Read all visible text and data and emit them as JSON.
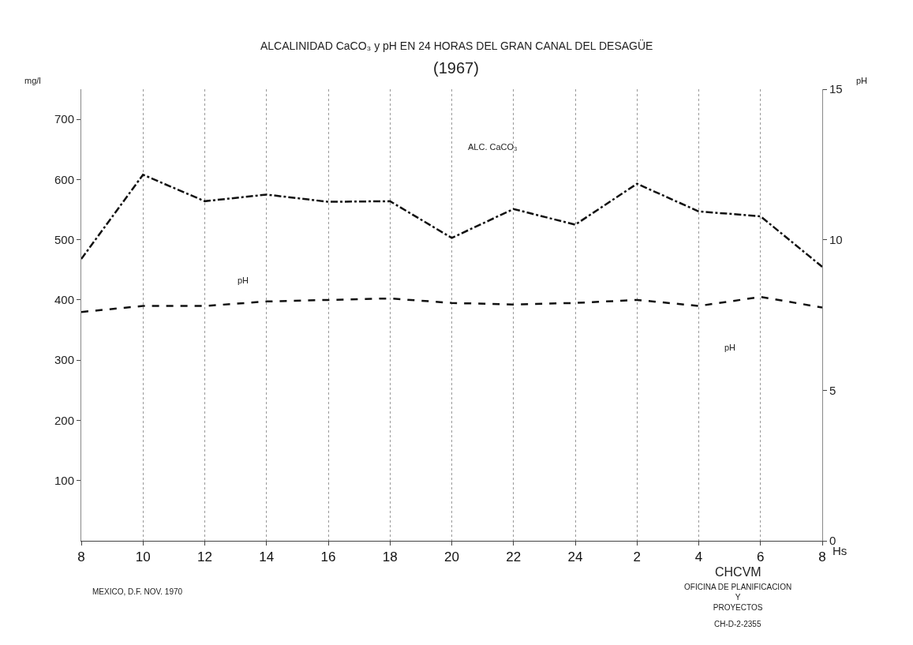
{
  "chart_data": {
    "type": "line",
    "title": "ALCALINIDAD CaCO₃ y pH EN 24 HORAS DEL GRAN CANAL DEL DESAGÜE",
    "subtitle": "(1967)",
    "ylabel": "mg/l",
    "y2label": "pH",
    "xlabel": "Hs",
    "categories": [
      "8",
      "10",
      "12",
      "14",
      "16",
      "18",
      "20",
      "22",
      "24",
      "2",
      "4",
      "6",
      "8"
    ],
    "series": [
      {
        "color": "#111111",
        "line_style": "dashdot",
        "values": [
          468,
          608,
          564,
          575,
          563,
          564,
          503,
          551,
          525,
          593,
          547,
          539,
          455
        ]
      },
      {
        "color": "#111111",
        "line_style": "dashed",
        "axis": "y2",
        "values": [
          7.6,
          7.8,
          7.8,
          7.95,
          8.0,
          8.05,
          7.9,
          7.85,
          7.9,
          8.0,
          7.8,
          8.1,
          7.75
        ]
      }
    ],
    "ylim": [
      0,
      750
    ],
    "yticks": [
      100,
      200,
      300,
      400,
      500,
      600,
      700
    ],
    "y2lim": [
      0,
      15
    ],
    "y2ticks": [
      0,
      5,
      10,
      15
    ],
    "grid": "x",
    "annotations": [
      "ALC. CaCO₃",
      "pH",
      "pH",
      "MEXICO, D.F. NOV. 1970",
      "CHCVM",
      "OFICINA DE PLANIFICACION\nY\nPROYECTOS",
      "CH-D-2-2355"
    ]
  }
}
